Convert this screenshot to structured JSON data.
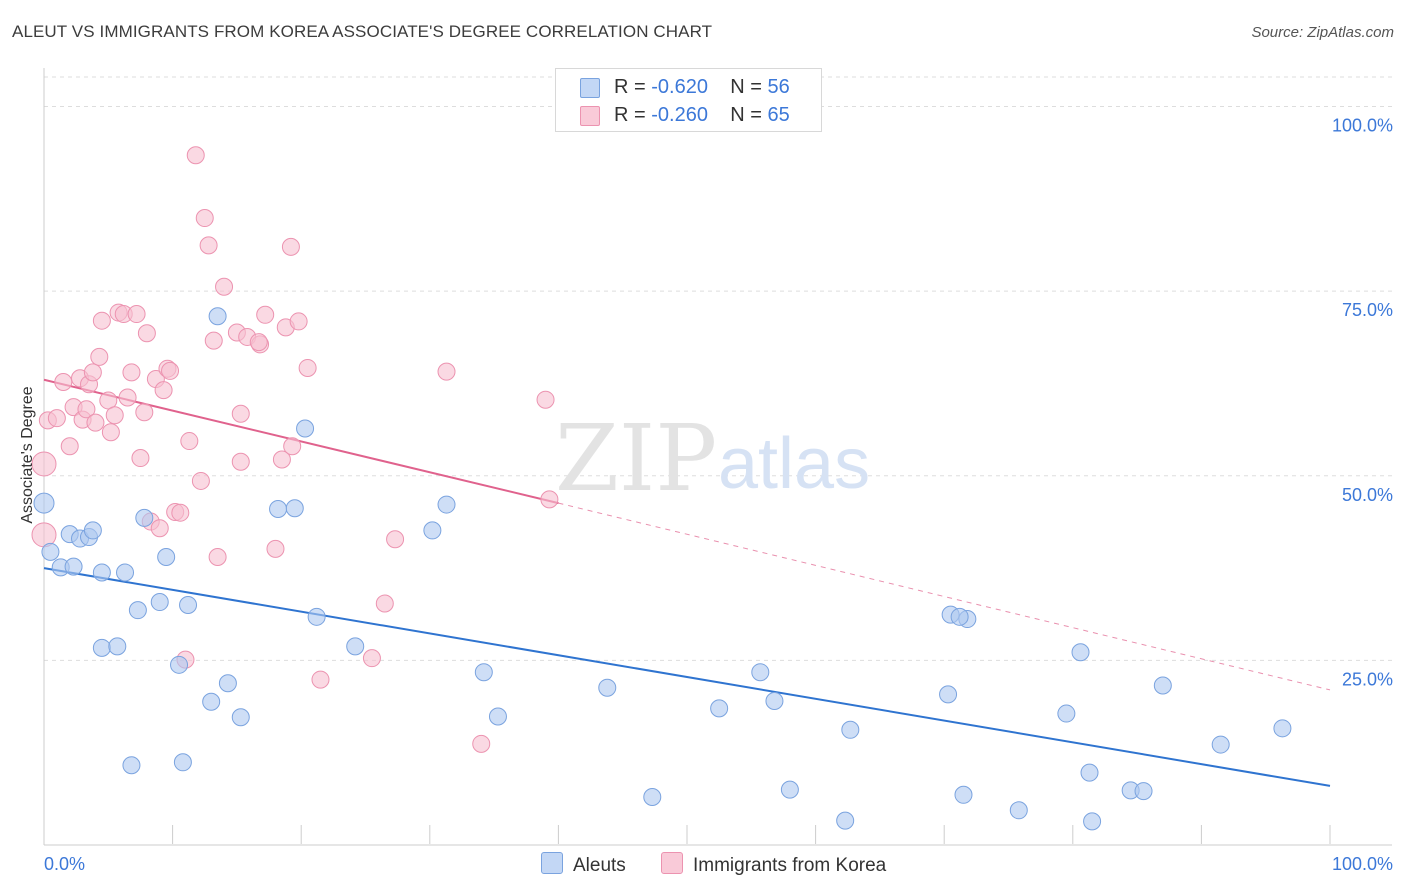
{
  "title": "ALEUT VS IMMIGRANTS FROM KOREA ASSOCIATE'S DEGREE CORRELATION CHART",
  "source": "Source: ZipAtlas.com",
  "watermark": {
    "zip": "ZIP",
    "atlas": "atlas"
  },
  "legend": {
    "rows": [
      {
        "r_label": "R = ",
        "r_value": "-0.620",
        "n_label": "N = ",
        "n_value": "56"
      },
      {
        "r_label": "R = ",
        "r_value": "-0.260",
        "n_label": "N = ",
        "n_value": "65"
      }
    ]
  },
  "bottom_legend": {
    "series1": "Aleuts",
    "series2": "Immigrants from Korea"
  },
  "colors": {
    "blue_fill": "#aec8f0",
    "blue_stroke": "#7aa3df",
    "blue_line": "#2f74d0",
    "pink_fill": "#f7bfd0",
    "pink_stroke": "#ec93b0",
    "pink_line": "#e0628d",
    "tick_text": "#3c78d8",
    "grid": "#dddddd"
  },
  "chart_data": {
    "type": "scatter",
    "title": "ALEUT VS IMMIGRANTS FROM KOREA ASSOCIATE'S DEGREE CORRELATION CHART",
    "xlabel": "",
    "ylabel": "Associate's Degree",
    "xlim": [
      0,
      100
    ],
    "ylim": [
      0,
      104
    ],
    "x_tick_labels": [
      "0.0%",
      "100.0%"
    ],
    "y_ticks": [
      25,
      50,
      75,
      100
    ],
    "y_tick_labels": [
      "25.0%",
      "50.0%",
      "75.0%",
      "100.0%"
    ],
    "grid": "horizontal dashed",
    "legend_placement": "top-center",
    "series": [
      {
        "name": "Aleuts",
        "r": -0.62,
        "n": 56,
        "trend": {
          "x": [
            0,
            100
          ],
          "y": [
            37.5,
            8.0
          ],
          "dashed_extension": false
        },
        "points": [
          [
            0,
            46.3
          ],
          [
            0.5,
            39.7
          ],
          [
            1.3,
            37.6
          ],
          [
            2,
            42.1
          ],
          [
            2.3,
            37.7
          ],
          [
            2.8,
            41.5
          ],
          [
            3.5,
            41.7
          ],
          [
            3.8,
            42.6
          ],
          [
            4.5,
            26.7
          ],
          [
            4.5,
            36.9
          ],
          [
            5.7,
            26.9
          ],
          [
            6.3,
            36.9
          ],
          [
            6.8,
            10.8
          ],
          [
            7.3,
            31.8
          ],
          [
            7.8,
            44.3
          ],
          [
            9,
            32.9
          ],
          [
            9.5,
            39.0
          ],
          [
            10.5,
            24.4
          ],
          [
            10.8,
            11.2
          ],
          [
            11.2,
            32.5
          ],
          [
            13,
            19.4
          ],
          [
            13.5,
            71.6
          ],
          [
            14.3,
            21.9
          ],
          [
            15.3,
            17.3
          ],
          [
            18.2,
            45.5
          ],
          [
            19.5,
            45.6
          ],
          [
            20.3,
            56.4
          ],
          [
            21.2,
            30.9
          ],
          [
            24.2,
            26.9
          ],
          [
            30.2,
            42.6
          ],
          [
            31.3,
            46.1
          ],
          [
            34.2,
            23.4
          ],
          [
            35.3,
            17.4
          ],
          [
            43.8,
            21.3
          ],
          [
            47.3,
            6.5
          ],
          [
            52.5,
            18.5
          ],
          [
            55.7,
            23.4
          ],
          [
            56.8,
            19.5
          ],
          [
            58,
            7.5
          ],
          [
            62.3,
            3.3
          ],
          [
            62.7,
            15.6
          ],
          [
            70.3,
            20.4
          ],
          [
            70.5,
            31.2
          ],
          [
            71.8,
            30.6
          ],
          [
            71.2,
            30.9
          ],
          [
            71.5,
            6.8
          ],
          [
            75.8,
            4.7
          ],
          [
            79.5,
            17.8
          ],
          [
            80.6,
            26.1
          ],
          [
            81.3,
            9.8
          ],
          [
            81.5,
            3.2
          ],
          [
            84.5,
            7.4
          ],
          [
            85.5,
            7.3
          ],
          [
            87,
            21.6
          ],
          [
            91.5,
            13.6
          ],
          [
            96.3,
            15.8
          ]
        ]
      },
      {
        "name": "Immigrants from Korea",
        "r": -0.26,
        "n": 65,
        "trend": {
          "x": [
            0,
            40
          ],
          "y": [
            63.0,
            46.3
          ],
          "dashed_x": [
            40,
            100
          ],
          "dashed_y": [
            46.3,
            21.0
          ]
        },
        "points": [
          [
            0,
            42.0
          ],
          [
            0,
            51.6
          ],
          [
            0.3,
            57.5
          ],
          [
            1.0,
            57.8
          ],
          [
            1.5,
            62.7
          ],
          [
            2.0,
            54.0
          ],
          [
            2.3,
            59.3
          ],
          [
            2.8,
            63.2
          ],
          [
            3.0,
            57.6
          ],
          [
            3.3,
            59.0
          ],
          [
            3.5,
            62.4
          ],
          [
            3.8,
            64.0
          ],
          [
            4.0,
            57.2
          ],
          [
            4.3,
            66.1
          ],
          [
            4.5,
            71.0
          ],
          [
            5.0,
            60.2
          ],
          [
            5.2,
            55.9
          ],
          [
            5.5,
            58.2
          ],
          [
            5.8,
            72.1
          ],
          [
            6.2,
            71.9
          ],
          [
            6.5,
            60.6
          ],
          [
            6.8,
            64.0
          ],
          [
            7.2,
            71.9
          ],
          [
            7.5,
            52.4
          ],
          [
            7.8,
            58.6
          ],
          [
            8.0,
            69.3
          ],
          [
            8.3,
            43.8
          ],
          [
            8.7,
            63.1
          ],
          [
            9.0,
            42.9
          ],
          [
            9.3,
            61.6
          ],
          [
            9.6,
            64.5
          ],
          [
            9.8,
            64.2
          ],
          [
            10.2,
            45.1
          ],
          [
            10.6,
            45.0
          ],
          [
            11.0,
            25.1
          ],
          [
            11.3,
            54.7
          ],
          [
            11.8,
            93.4
          ],
          [
            12.2,
            49.3
          ],
          [
            12.5,
            84.9
          ],
          [
            12.8,
            81.2
          ],
          [
            13.2,
            68.3
          ],
          [
            13.5,
            39.0
          ],
          [
            14.0,
            75.6
          ],
          [
            15.0,
            69.4
          ],
          [
            15.3,
            58.4
          ],
          [
            15.3,
            51.9
          ],
          [
            15.8,
            68.8
          ],
          [
            16.8,
            67.8
          ],
          [
            16.7,
            68.1
          ],
          [
            17.2,
            71.8
          ],
          [
            18.0,
            40.1
          ],
          [
            18.5,
            52.2
          ],
          [
            18.8,
            70.1
          ],
          [
            19.2,
            81.0
          ],
          [
            19.3,
            54.0
          ],
          [
            19.8,
            70.9
          ],
          [
            20.5,
            64.6
          ],
          [
            21.5,
            22.4
          ],
          [
            25.5,
            25.3
          ],
          [
            26.5,
            32.7
          ],
          [
            27.3,
            41.4
          ],
          [
            31.3,
            64.1
          ],
          [
            34.0,
            13.7
          ],
          [
            39.0,
            60.3
          ],
          [
            39.3,
            46.8
          ]
        ]
      }
    ]
  }
}
